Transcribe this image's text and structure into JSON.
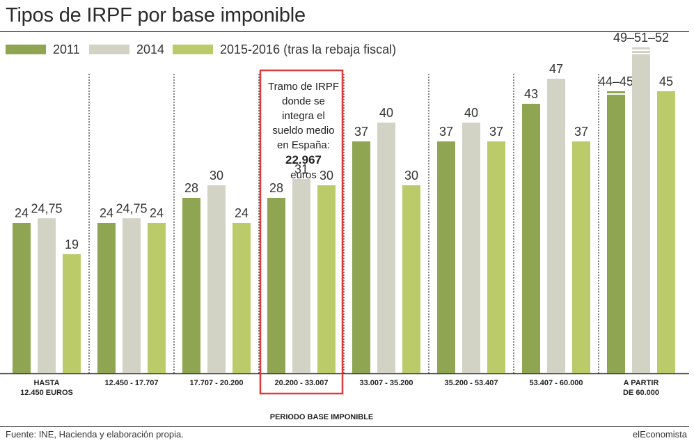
{
  "title": "Tipos de IRPF por base imponible",
  "legend": [
    {
      "label": "2011",
      "color": "#8fa551"
    },
    {
      "label": "2014",
      "color": "#d3d3c5"
    },
    {
      "label": "2015-2016 (tras la rebaja fiscal)",
      "color": "#bccb6a"
    }
  ],
  "annotation": {
    "line1": "Tramo de IRPF",
    "line2": "donde se",
    "line3": "integra el",
    "line4": "sueldo medio",
    "line5": "en España:",
    "line6": "22.967",
    "line7": "euros"
  },
  "highlight_color": "#e03a3a",
  "source": "Fuente: INE, Hacienda y elaboración propia.",
  "brand": "elEconomista",
  "chart_data": {
    "type": "bar",
    "title": "Tipos de IRPF por base imponible",
    "xlabel": "PERIODO BASE IMPONIBLE",
    "ylabel": "",
    "ylim": [
      0,
      60
    ],
    "grid": false,
    "legend_position": "top-left",
    "highlight_category_index": 3,
    "categories": [
      [
        "HASTA",
        "12.450 EUROS"
      ],
      [
        "12.450 - 17.707"
      ],
      [
        "17.707 - 20.200"
      ],
      [
        "20.200 - 33.007"
      ],
      [
        "33.007 - 35.200"
      ],
      [
        "35.200 - 53.407"
      ],
      [
        "53.407 - 60.000"
      ],
      [
        "A PARTIR",
        "DE 60.000"
      ]
    ],
    "series": [
      {
        "name": "2011",
        "color": "#8fa551",
        "values": [
          24,
          24,
          28,
          28,
          37,
          37,
          43,
          45
        ],
        "labels": [
          "24",
          "24",
          "28",
          "28",
          "37",
          "37",
          "43",
          "44–45"
        ],
        "steps": [
          [],
          [],
          [],
          [],
          [],
          [],
          [],
          [
            44,
            45
          ]
        ]
      },
      {
        "name": "2014",
        "color": "#d3d3c5",
        "values": [
          24.75,
          24.75,
          30,
          31,
          40,
          40,
          47,
          52
        ],
        "labels": [
          "24,75",
          "24,75",
          "30",
          "31",
          "40",
          "40",
          "47",
          "49–51–52"
        ],
        "steps": [
          [],
          [],
          [],
          [],
          [],
          [],
          [],
          [
            49,
            51,
            52
          ]
        ]
      },
      {
        "name": "2015-2016 (tras la rebaja fiscal)",
        "color": "#bccb6a",
        "values": [
          19,
          24,
          24,
          30,
          30,
          37,
          37,
          45
        ],
        "labels": [
          "19",
          "24",
          "24",
          "30",
          "30",
          "37",
          "37",
          "45"
        ],
        "steps": [
          [],
          [],
          [],
          [],
          [],
          [],
          [],
          []
        ]
      }
    ]
  }
}
